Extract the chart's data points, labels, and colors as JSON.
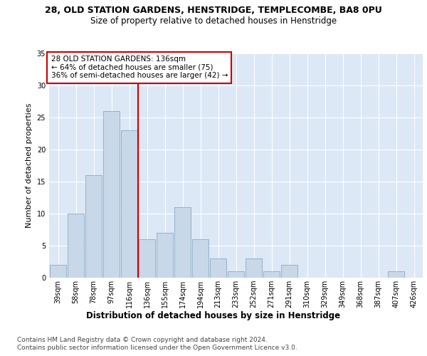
{
  "title1": "28, OLD STATION GARDENS, HENSTRIDGE, TEMPLECOMBE, BA8 0PU",
  "title2": "Size of property relative to detached houses in Henstridge",
  "xlabel": "Distribution of detached houses by size in Henstridge",
  "ylabel": "Number of detached properties",
  "footer1": "Contains HM Land Registry data © Crown copyright and database right 2024.",
  "footer2": "Contains public sector information licensed under the Open Government Licence v3.0.",
  "annotation_line1": "28 OLD STATION GARDENS: 136sqm",
  "annotation_line2": "← 64% of detached houses are smaller (75)",
  "annotation_line3": "36% of semi-detached houses are larger (42) →",
  "bar_color": "#c8d8e8",
  "bar_edge_color": "#7aa0c0",
  "reference_line_color": "#cc0000",
  "categories": [
    "39sqm",
    "58sqm",
    "78sqm",
    "97sqm",
    "116sqm",
    "136sqm",
    "155sqm",
    "174sqm",
    "194sqm",
    "213sqm",
    "233sqm",
    "252sqm",
    "271sqm",
    "291sqm",
    "310sqm",
    "329sqm",
    "349sqm",
    "368sqm",
    "387sqm",
    "407sqm",
    "426sqm"
  ],
  "values": [
    2,
    10,
    16,
    26,
    23,
    6,
    7,
    11,
    6,
    3,
    1,
    3,
    1,
    2,
    0,
    0,
    0,
    0,
    0,
    1,
    0
  ],
  "ylim": [
    0,
    35
  ],
  "yticks": [
    0,
    5,
    10,
    15,
    20,
    25,
    30,
    35
  ],
  "plot_bg_color": "#dce8f5",
  "title1_fontsize": 9,
  "title2_fontsize": 8.5,
  "xlabel_fontsize": 8.5,
  "ylabel_fontsize": 8,
  "annotation_fontsize": 7.5,
  "footer_fontsize": 6.5,
  "tick_fontsize": 7
}
